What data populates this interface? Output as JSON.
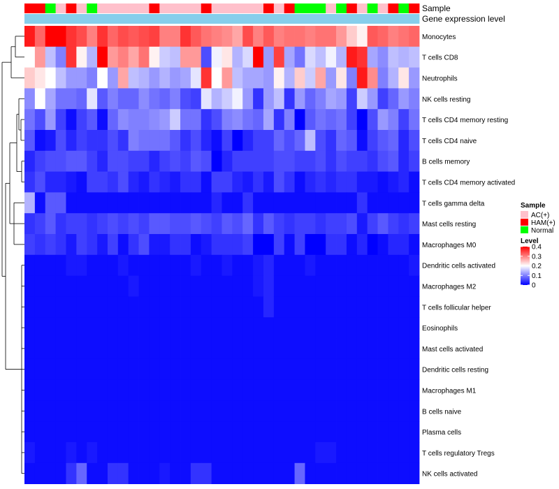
{
  "chart_data": {
    "type": "heatmap",
    "title": "",
    "annotation_tracks": [
      "Sample",
      "Gene expression level"
    ],
    "sample_groups": [
      "AC(+)",
      "HAM(+)",
      "Normal"
    ],
    "sample_annotation": [
      "HAM(+)",
      "HAM(+)",
      "Normal",
      "AC(+)",
      "HAM(+)",
      "AC(+)",
      "Normal",
      "AC(+)",
      "AC(+)",
      "AC(+)",
      "AC(+)",
      "AC(+)",
      "HAM(+)",
      "AC(+)",
      "AC(+)",
      "AC(+)",
      "AC(+)",
      "HAM(+)",
      "AC(+)",
      "AC(+)",
      "AC(+)",
      "AC(+)",
      "AC(+)",
      "HAM(+)",
      "AC(+)",
      "HAM(+)",
      "Normal",
      "Normal",
      "Normal",
      "AC(+)",
      "Normal",
      "HAM(+)",
      "AC(+)",
      "Normal",
      "AC(+)",
      "HAM(+)",
      "Normal",
      "HAM(+)"
    ],
    "rows": [
      "Monocytes",
      "T cells CD8",
      "Neutrophils",
      "NK cells resting",
      "T cells CD4 memory resting",
      "T cells CD4 naive",
      "B cells memory",
      "T cells CD4 memory activated",
      "T cells gamma delta",
      "Mast cells resting",
      "Macrophages M0",
      "Dendritic cells activated",
      "Macrophages M2",
      "T cells follicular helper",
      "Eosinophils",
      "Mast cells activated",
      "Dendritic cells resting",
      "Macrophages M1",
      "B cells naive",
      "Plasma cells",
      "T cells regulatory  Tregs",
      "NK cells activated"
    ],
    "values": [
      [
        0.38,
        0.32,
        0.4,
        0.4,
        0.36,
        0.34,
        0.3,
        0.36,
        0.32,
        0.34,
        0.33,
        0.34,
        0.35,
        0.3,
        0.3,
        0.36,
        0.33,
        0.31,
        0.3,
        0.29,
        0.27,
        0.34,
        0.3,
        0.33,
        0.3,
        0.31,
        0.31,
        0.3,
        0.31,
        0.31,
        0.28,
        0.24,
        0.21,
        0.33,
        0.32,
        0.3,
        0.31,
        0.32
      ],
      [
        0.2,
        0.28,
        0.15,
        0.1,
        0.36,
        0.21,
        0.14,
        0.4,
        0.28,
        0.3,
        0.27,
        0.31,
        0.21,
        0.16,
        0.15,
        0.28,
        0.28,
        0.06,
        0.19,
        0.22,
        0.14,
        0.17,
        0.4,
        0.12,
        0.35,
        0.13,
        0.09,
        0.17,
        0.15,
        0.19,
        0.14,
        0.38,
        0.36,
        0.13,
        0.11,
        0.15,
        0.14,
        0.15
      ],
      [
        0.24,
        0.22,
        0.2,
        0.15,
        0.12,
        0.12,
        0.1,
        0.2,
        0.12,
        0.27,
        0.15,
        0.14,
        0.12,
        0.14,
        0.12,
        0.13,
        0.18,
        0.36,
        0.2,
        0.28,
        0.15,
        0.13,
        0.13,
        0.12,
        0.21,
        0.14,
        0.24,
        0.16,
        0.27,
        0.12,
        0.22,
        0.1,
        0.38,
        0.29,
        0.1,
        0.14,
        0.22,
        0.12
      ],
      [
        0.11,
        0.2,
        0.13,
        0.09,
        0.09,
        0.08,
        0.18,
        0.07,
        0.1,
        0.08,
        0.08,
        0.11,
        0.09,
        0.08,
        0.1,
        0.06,
        0.05,
        0.18,
        0.14,
        0.16,
        0.19,
        0.12,
        0.04,
        0.12,
        0.15,
        0.04,
        0.12,
        0.08,
        0.1,
        0.13,
        0.12,
        0.05,
        0.16,
        0.12,
        0.05,
        0.08,
        0.12,
        0.1
      ],
      [
        0.09,
        0.06,
        0.12,
        0.05,
        0.01,
        0.05,
        0.07,
        0.01,
        0.08,
        0.11,
        0.1,
        0.1,
        0.11,
        0.12,
        0.16,
        0.09,
        0.09,
        0.04,
        0.06,
        0.1,
        0.11,
        0.09,
        0.08,
        0.13,
        0.04,
        0.1,
        0.0,
        0.07,
        0.09,
        0.08,
        0.09,
        0.05,
        0.0,
        0.06,
        0.12,
        0.1,
        0.05,
        0.09
      ],
      [
        0.07,
        0.01,
        0.02,
        0.06,
        0.03,
        0.05,
        0.04,
        0.04,
        0.06,
        0.04,
        0.1,
        0.09,
        0.09,
        0.09,
        0.07,
        0.04,
        0.06,
        0.03,
        0.01,
        0.05,
        0.0,
        0.03,
        0.05,
        0.05,
        0.08,
        0.06,
        0.08,
        0.15,
        0.06,
        0.04,
        0.08,
        0.07,
        0.01,
        0.05,
        0.07,
        0.08,
        0.03,
        0.06
      ],
      [
        0.03,
        0.05,
        0.06,
        0.06,
        0.07,
        0.07,
        0.05,
        0.03,
        0.06,
        0.06,
        0.05,
        0.05,
        0.03,
        0.05,
        0.06,
        0.05,
        0.07,
        0.06,
        0.0,
        0.03,
        0.05,
        0.05,
        0.05,
        0.05,
        0.06,
        0.06,
        0.05,
        0.05,
        0.06,
        0.04,
        0.06,
        0.05,
        0.05,
        0.04,
        0.06,
        0.07,
        0.03,
        0.05
      ],
      [
        0.04,
        0.06,
        0.03,
        0.03,
        0.02,
        0.01,
        0.05,
        0.05,
        0.04,
        0.06,
        0.03,
        0.02,
        0.04,
        0.03,
        0.02,
        0.04,
        0.04,
        0.01,
        0.05,
        0.05,
        0.03,
        0.02,
        0.04,
        0.02,
        0.06,
        0.04,
        0.01,
        0.03,
        0.04,
        0.03,
        0.04,
        0.04,
        0.02,
        0.02,
        0.01,
        0.02,
        0.03,
        0.01
      ],
      [
        0.14,
        0.01,
        0.07,
        0.07,
        0.01,
        0.01,
        0.01,
        0.01,
        0.01,
        0.01,
        0.01,
        0.01,
        0.01,
        0.01,
        0.01,
        0.01,
        0.01,
        0.01,
        0.03,
        0.01,
        0.01,
        0.04,
        0.01,
        0.01,
        0.01,
        0.01,
        0.01,
        0.01,
        0.01,
        0.01,
        0.01,
        0.01,
        0.04,
        0.01,
        0.01,
        0.01,
        0.01,
        0.01
      ],
      [
        0.04,
        0.05,
        0.07,
        0.04,
        0.05,
        0.05,
        0.04,
        0.05,
        0.06,
        0.05,
        0.06,
        0.05,
        0.07,
        0.07,
        0.06,
        0.06,
        0.07,
        0.06,
        0.05,
        0.07,
        0.06,
        0.08,
        0.04,
        0.07,
        0.05,
        0.04,
        0.05,
        0.05,
        0.04,
        0.05,
        0.05,
        0.06,
        0.02,
        0.05,
        0.07,
        0.05,
        0.04,
        0.05
      ],
      [
        0.05,
        0.04,
        0.05,
        0.04,
        0.02,
        0.05,
        0.04,
        0.02,
        0.05,
        0.01,
        0.04,
        0.06,
        0.02,
        0.02,
        0.04,
        0.04,
        0.01,
        0.02,
        0.04,
        0.04,
        0.04,
        0.05,
        0.0,
        0.0,
        0.05,
        0.01,
        0.05,
        0.0,
        0.0,
        0.04,
        0.04,
        0.01,
        0.03,
        0.0,
        0.01,
        0.03,
        0.03,
        0.01
      ],
      [
        0.01,
        0.01,
        0.01,
        0.01,
        0.02,
        0.02,
        0.01,
        0.01,
        0.01,
        0.02,
        0.01,
        0.01,
        0.01,
        0.01,
        0.01,
        0.01,
        0.02,
        0.01,
        0.01,
        0.02,
        0.01,
        0.01,
        0.02,
        0.03,
        0.01,
        0.01,
        0.01,
        0.02,
        0.01,
        0.01,
        0.01,
        0.01,
        0.01,
        0.01,
        0.01,
        0.01,
        0.01,
        0.02
      ],
      [
        0.01,
        0.01,
        0.01,
        0.01,
        0.01,
        0.01,
        0.01,
        0.01,
        0.01,
        0.01,
        0.02,
        0.01,
        0.01,
        0.01,
        0.01,
        0.01,
        0.01,
        0.01,
        0.01,
        0.01,
        0.01,
        0.01,
        0.02,
        0.03,
        0.01,
        0.01,
        0.01,
        0.01,
        0.01,
        0.01,
        0.01,
        0.01,
        0.01,
        0.01,
        0.01,
        0.01,
        0.01,
        0.01
      ],
      [
        0.01,
        0.01,
        0.01,
        0.01,
        0.01,
        0.01,
        0.01,
        0.01,
        0.01,
        0.01,
        0.01,
        0.01,
        0.01,
        0.01,
        0.01,
        0.01,
        0.01,
        0.01,
        0.01,
        0.01,
        0.01,
        0.01,
        0.01,
        0.03,
        0.01,
        0.01,
        0.01,
        0.01,
        0.01,
        0.01,
        0.01,
        0.01,
        0.01,
        0.01,
        0.01,
        0.01,
        0.01,
        0.01
      ],
      [
        0.01,
        0.01,
        0.01,
        0.01,
        0.01,
        0.01,
        0.01,
        0.01,
        0.01,
        0.01,
        0.01,
        0.01,
        0.01,
        0.01,
        0.01,
        0.01,
        0.01,
        0.01,
        0.01,
        0.01,
        0.01,
        0.01,
        0.01,
        0.01,
        0.01,
        0.01,
        0.01,
        0.01,
        0.01,
        0.01,
        0.01,
        0.01,
        0.01,
        0.01,
        0.01,
        0.01,
        0.01,
        0.01
      ],
      [
        0.01,
        0.01,
        0.01,
        0.01,
        0.01,
        0.01,
        0.01,
        0.01,
        0.01,
        0.01,
        0.01,
        0.01,
        0.01,
        0.01,
        0.01,
        0.01,
        0.01,
        0.01,
        0.01,
        0.01,
        0.01,
        0.01,
        0.01,
        0.01,
        0.01,
        0.01,
        0.01,
        0.01,
        0.01,
        0.01,
        0.01,
        0.01,
        0.01,
        0.01,
        0.01,
        0.01,
        0.01,
        0.01
      ],
      [
        0.01,
        0.01,
        0.01,
        0.01,
        0.01,
        0.01,
        0.01,
        0.01,
        0.01,
        0.01,
        0.01,
        0.01,
        0.01,
        0.01,
        0.01,
        0.01,
        0.01,
        0.01,
        0.01,
        0.01,
        0.01,
        0.01,
        0.01,
        0.01,
        0.01,
        0.01,
        0.01,
        0.01,
        0.01,
        0.01,
        0.01,
        0.01,
        0.01,
        0.01,
        0.01,
        0.01,
        0.01,
        0.01
      ],
      [
        0.01,
        0.01,
        0.01,
        0.01,
        0.01,
        0.01,
        0.01,
        0.01,
        0.01,
        0.01,
        0.01,
        0.01,
        0.01,
        0.01,
        0.01,
        0.01,
        0.01,
        0.01,
        0.01,
        0.01,
        0.01,
        0.01,
        0.01,
        0.01,
        0.01,
        0.01,
        0.01,
        0.01,
        0.01,
        0.01,
        0.01,
        0.01,
        0.01,
        0.01,
        0.01,
        0.01,
        0.01,
        0.01
      ],
      [
        0.01,
        0.01,
        0.01,
        0.01,
        0.01,
        0.01,
        0.01,
        0.01,
        0.01,
        0.01,
        0.01,
        0.01,
        0.01,
        0.01,
        0.01,
        0.01,
        0.01,
        0.01,
        0.01,
        0.01,
        0.01,
        0.01,
        0.01,
        0.01,
        0.01,
        0.01,
        0.01,
        0.01,
        0.01,
        0.01,
        0.01,
        0.01,
        0.01,
        0.01,
        0.01,
        0.01,
        0.01,
        0.01
      ],
      [
        0.01,
        0.01,
        0.01,
        0.01,
        0.01,
        0.01,
        0.01,
        0.01,
        0.01,
        0.01,
        0.01,
        0.01,
        0.01,
        0.01,
        0.01,
        0.01,
        0.01,
        0.01,
        0.01,
        0.01,
        0.01,
        0.01,
        0.01,
        0.01,
        0.01,
        0.01,
        0.01,
        0.01,
        0.01,
        0.01,
        0.01,
        0.01,
        0.01,
        0.01,
        0.01,
        0.01,
        0.01,
        0.01
      ],
      [
        0.02,
        0.01,
        0.01,
        0.01,
        0.02,
        0.01,
        0.02,
        0.01,
        0.01,
        0.01,
        0.01,
        0.01,
        0.01,
        0.01,
        0.01,
        0.01,
        0.01,
        0.01,
        0.01,
        0.01,
        0.01,
        0.01,
        0.01,
        0.01,
        0.01,
        0.01,
        0.01,
        0.01,
        0.02,
        0.02,
        0.01,
        0.01,
        0.01,
        0.01,
        0.01,
        0.01,
        0.01,
        0.01
      ],
      [
        0.01,
        0.01,
        0.01,
        0.01,
        0.04,
        0.08,
        0.01,
        0.01,
        0.04,
        0.04,
        0.01,
        0.01,
        0.01,
        0.02,
        0.01,
        0.01,
        0.04,
        0.04,
        0.01,
        0.01,
        0.01,
        0.01,
        0.01,
        0.01,
        0.01,
        0.01,
        0.08,
        0.01,
        0.01,
        0.01,
        0.01,
        0.01,
        0.01,
        0.01,
        0.01,
        0.01,
        0.01,
        0.01
      ]
    ],
    "color_scale": {
      "min": 0,
      "max": 0.4,
      "low_color": "#0000ff",
      "mid_color": "#ffffff",
      "high_color": "#ff0000",
      "mid_value": 0.2
    },
    "legend": {
      "sample_title": "Sample",
      "sample_entries": [
        {
          "label": "AC(+)",
          "color": "#ffc0cb"
        },
        {
          "label": "HAM(+)",
          "color": "#ff0000"
        },
        {
          "label": "Normal",
          "color": "#00ff00"
        }
      ],
      "level_title": "Level",
      "level_ticks": [
        "0.4",
        "0.3",
        "0.2",
        "0.1",
        "0"
      ],
      "level_tick_values": [
        0.4,
        0.3,
        0.2,
        0.1,
        0
      ]
    },
    "expression_track_color": "#87ceeb",
    "dendrogram": "row clustering"
  }
}
